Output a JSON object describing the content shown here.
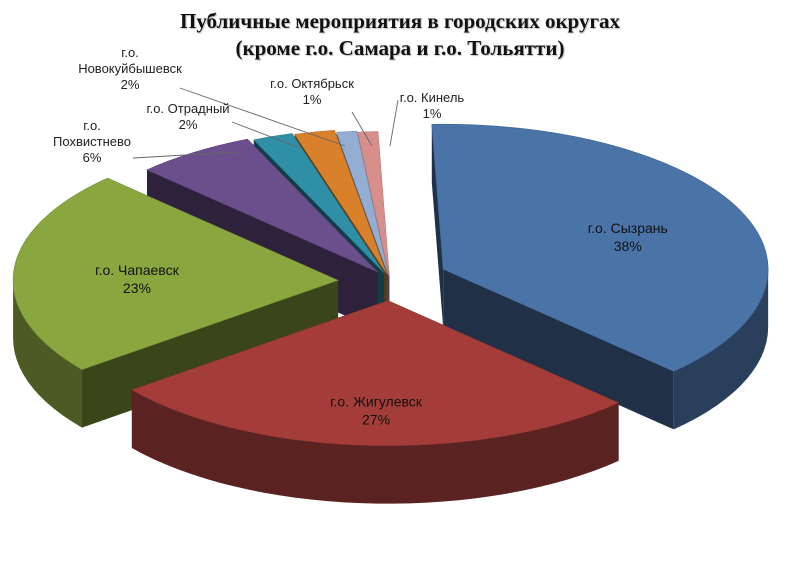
{
  "chart_data": {
    "type": "pie",
    "title_line1": "Публичные мероприятия в городских округах",
    "title_line2": "(кроме г.о. Самара и г.о. Тольятти)",
    "slices": [
      {
        "name_lines": [
          "г.о. Сызрань"
        ],
        "value": 38,
        "percent": "38%",
        "color": "#4a73a8"
      },
      {
        "name_lines": [
          "г.о. Жигулевск"
        ],
        "value": 27,
        "percent": "27%",
        "color": "#a43d3a"
      },
      {
        "name_lines": [
          "г.о. Чапаевск"
        ],
        "value": 23,
        "percent": "23%",
        "color": "#8aa63f"
      },
      {
        "name_lines": [
          "г.о.",
          "Похвистнево"
        ],
        "value": 6,
        "percent": "6%",
        "color": "#6a4f8c"
      },
      {
        "name_lines": [
          "г.о. Отрадный"
        ],
        "value": 2,
        "percent": "2%",
        "color": "#2e8fa6"
      },
      {
        "name_lines": [
          "г.о.",
          "Новокуйбышевск"
        ],
        "value": 2,
        "percent": "2%",
        "color": "#d9802b"
      },
      {
        "name_lines": [
          "г.о. Октябрьск"
        ],
        "value": 1,
        "percent": "1%",
        "color": "#93aed2"
      },
      {
        "name_lines": [
          "г.о. Кинель"
        ],
        "value": 1,
        "percent": "1%",
        "color": "#d88f8c"
      }
    ]
  }
}
